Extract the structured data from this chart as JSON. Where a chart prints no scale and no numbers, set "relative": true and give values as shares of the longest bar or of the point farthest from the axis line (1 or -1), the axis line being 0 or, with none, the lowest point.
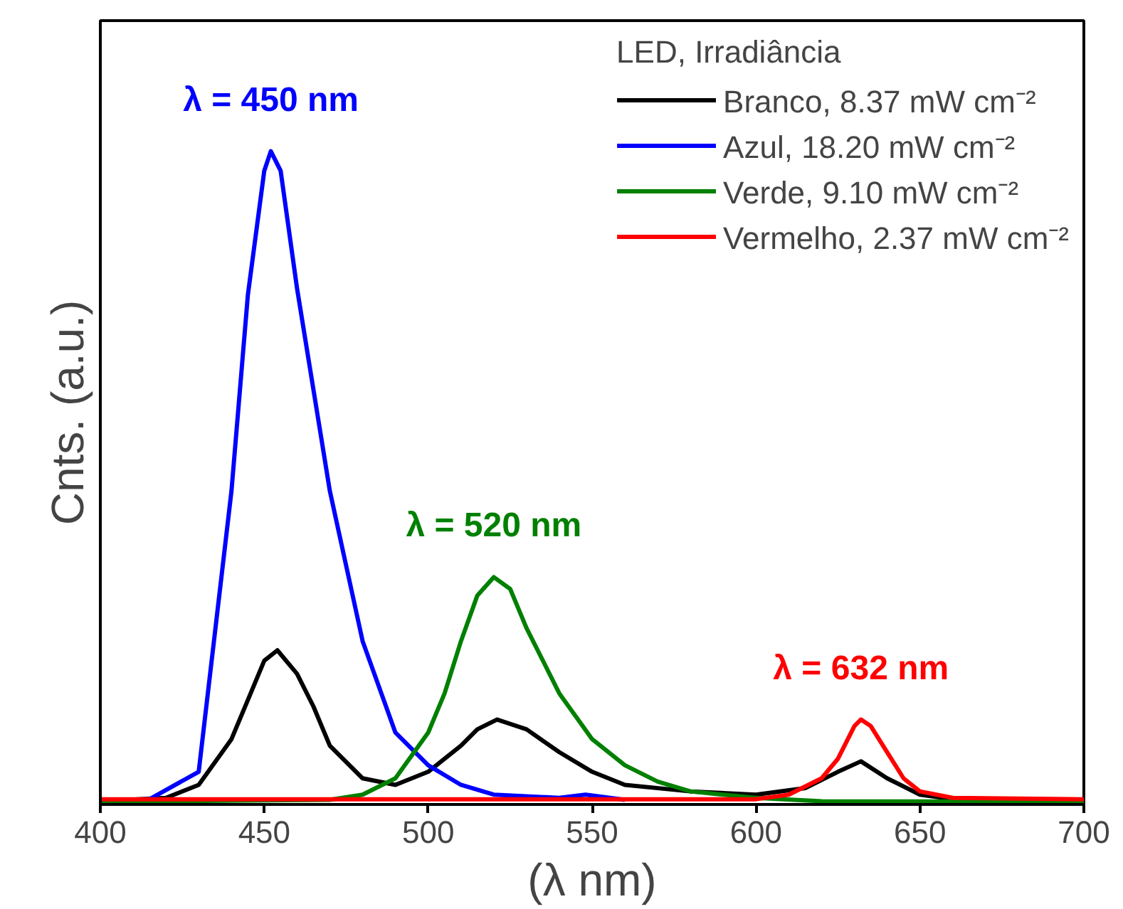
{
  "chart_data": {
    "type": "line",
    "relative": true,
    "xlabel": "(λ nm)",
    "ylabel": "Cnts. (a.u.)",
    "legend_title": "LED, Irradiância",
    "legend": "top right",
    "grid": false,
    "tick_labels": "x",
    "marker": "none",
    "line_style": "solid",
    "xlim": [
      400,
      700
    ],
    "xticks": [
      400,
      450,
      500,
      550,
      600,
      650,
      700
    ],
    "series": [
      {
        "name": "Branco, 8.37 mW cm⁻²",
        "color": "#000000",
        "x": [
          400,
          420,
          430,
          440,
          445,
          450,
          454,
          460,
          465,
          470,
          480,
          490,
          500,
          510,
          515,
          521,
          530,
          540,
          550,
          560,
          580,
          600,
          615,
          625,
          632,
          640,
          650,
          660,
          700
        ],
        "values": [
          0.005,
          0.01,
          0.03,
          0.1,
          0.16,
          0.22,
          0.236,
          0.2,
          0.15,
          0.09,
          0.04,
          0.03,
          0.05,
          0.09,
          0.115,
          0.13,
          0.115,
          0.08,
          0.05,
          0.03,
          0.02,
          0.015,
          0.025,
          0.05,
          0.066,
          0.04,
          0.015,
          0.008,
          0.005
        ]
      },
      {
        "name": "Azul, 18.20 mW cm⁻²",
        "color": "#0000ff",
        "x": [
          415,
          430,
          440,
          445,
          450,
          452,
          455,
          460,
          470,
          480,
          490,
          500,
          510,
          520,
          540,
          548,
          560
        ],
        "values": [
          0.008,
          0.05,
          0.48,
          0.78,
          0.97,
          1.0,
          0.97,
          0.79,
          0.48,
          0.25,
          0.11,
          0.06,
          0.03,
          0.015,
          0.01,
          0.015,
          0.007
        ]
      },
      {
        "name": "Verde, 9.10 mW cm⁻²",
        "color": "#008000",
        "x": [
          400,
          470,
          480,
          490,
          500,
          505,
          510,
          515,
          520,
          525,
          530,
          540,
          550,
          560,
          570,
          580,
          600,
          620,
          700
        ],
        "values": [
          0.004,
          0.007,
          0.015,
          0.04,
          0.11,
          0.17,
          0.25,
          0.32,
          0.348,
          0.33,
          0.27,
          0.17,
          0.1,
          0.06,
          0.035,
          0.02,
          0.01,
          0.005,
          0.004
        ]
      },
      {
        "name": "Vermelho, 2.37 mW cm⁻²",
        "color": "#ff0000",
        "x": [
          400,
          600,
          610,
          620,
          625,
          630,
          632,
          635,
          640,
          645,
          650,
          660,
          700
        ],
        "values": [
          0.008,
          0.008,
          0.015,
          0.04,
          0.07,
          0.12,
          0.13,
          0.12,
          0.08,
          0.04,
          0.02,
          0.01,
          0.008
        ]
      }
    ],
    "annotations": [
      {
        "text": "λ = 450 nm",
        "x": 452,
        "y": 1.0
      },
      {
        "text": "λ = 520 nm",
        "x": 520,
        "y": 0.348
      },
      {
        "text": "λ = 632 nm",
        "x": 632,
        "y": 0.13
      }
    ]
  }
}
